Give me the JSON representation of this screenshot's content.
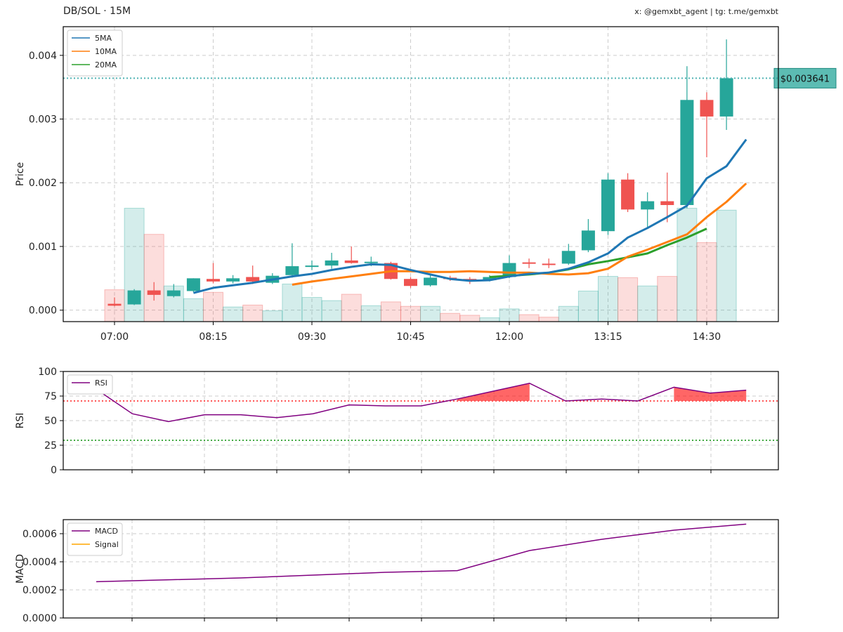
{
  "header": {
    "title": "DB/SOL · 15M",
    "credit": "x: @gemxbt_agent | tg: t.me/gemxbt"
  },
  "colors": {
    "up": "#26a69a",
    "down": "#ef5350",
    "ma5": "#1f77b4",
    "ma10": "#ff7f0e",
    "ma20": "#2ca02c",
    "rsi": "#800080",
    "macd": "#800080",
    "signal": "#ffa500",
    "price_line": "#4fb3b3"
  },
  "chart_data": [
    {
      "type": "candlestick",
      "ylabel": "Price",
      "ylim": [
        -0.00018,
        0.00445
      ],
      "yticks": [
        "0.000",
        "0.001",
        "0.002",
        "0.003",
        "0.004"
      ],
      "ytick_values": [
        0,
        0.001,
        0.002,
        0.003,
        0.004
      ],
      "xticks": [
        "07:00",
        "08:15",
        "09:30",
        "10:45",
        "12:00",
        "13:15",
        "14:30"
      ],
      "xtick_index": [
        0,
        5,
        10,
        15,
        20,
        25,
        30
      ],
      "grid": true,
      "legend": {
        "position": "top-left",
        "entries": [
          "5MA",
          "10MA",
          "20MA"
        ]
      },
      "last_price_label": "$0.003641",
      "last_price": 0.003641,
      "candles": [
        {
          "o": 0.0001,
          "h": 0.0002,
          "l": 6e-05,
          "c": 7e-05
        },
        {
          "o": 9e-05,
          "h": 0.00033,
          "l": 8e-05,
          "c": 0.00031
        },
        {
          "o": 0.00031,
          "h": 0.00044,
          "l": 0.00015,
          "c": 0.00024
        },
        {
          "o": 0.00022,
          "h": 0.00041,
          "l": 0.0002,
          "c": 0.00031
        },
        {
          "o": 0.0003,
          "h": 0.0005,
          "l": 0.00028,
          "c": 0.0005
        },
        {
          "o": 0.00049,
          "h": 0.00074,
          "l": 0.00042,
          "c": 0.00045
        },
        {
          "o": 0.00045,
          "h": 0.00055,
          "l": 0.00042,
          "c": 0.0005
        },
        {
          "o": 0.00052,
          "h": 0.0007,
          "l": 0.00041,
          "c": 0.00045
        },
        {
          "o": 0.00043,
          "h": 0.00058,
          "l": 0.00041,
          "c": 0.00054
        },
        {
          "o": 0.00055,
          "h": 0.00105,
          "l": 0.00051,
          "c": 0.00069
        },
        {
          "o": 0.00069,
          "h": 0.00078,
          "l": 0.00063,
          "c": 0.0007
        },
        {
          "o": 0.0007,
          "h": 0.0009,
          "l": 0.00065,
          "c": 0.00078
        },
        {
          "o": 0.00078,
          "h": 0.001,
          "l": 0.00073,
          "c": 0.00074
        },
        {
          "o": 0.00076,
          "h": 0.00084,
          "l": 0.00069,
          "c": 0.00076
        },
        {
          "o": 0.00074,
          "h": 0.00076,
          "l": 0.00048,
          "c": 0.00049
        },
        {
          "o": 0.00049,
          "h": 0.00052,
          "l": 0.00035,
          "c": 0.00038
        },
        {
          "o": 0.00039,
          "h": 0.00055,
          "l": 0.00037,
          "c": 0.00051
        },
        {
          "o": 0.00051,
          "h": 0.00054,
          "l": 0.00046,
          "c": 0.00049
        },
        {
          "o": 0.00049,
          "h": 0.00052,
          "l": 0.00041,
          "c": 0.00047
        },
        {
          "o": 0.00047,
          "h": 0.00055,
          "l": 0.00045,
          "c": 0.00052
        },
        {
          "o": 0.00052,
          "h": 0.00086,
          "l": 0.0005,
          "c": 0.00074
        },
        {
          "o": 0.00075,
          "h": 0.00081,
          "l": 0.00066,
          "c": 0.00073
        },
        {
          "o": 0.00073,
          "h": 0.00081,
          "l": 0.00066,
          "c": 0.00072
        },
        {
          "o": 0.00073,
          "h": 0.00104,
          "l": 0.00071,
          "c": 0.00093
        },
        {
          "o": 0.00094,
          "h": 0.00143,
          "l": 0.00091,
          "c": 0.00125
        },
        {
          "o": 0.00124,
          "h": 0.00215,
          "l": 0.00118,
          "c": 0.00205
        },
        {
          "o": 0.00205,
          "h": 0.00215,
          "l": 0.00154,
          "c": 0.00158
        },
        {
          "o": 0.00158,
          "h": 0.00185,
          "l": 0.00128,
          "c": 0.00171
        },
        {
          "o": 0.00171,
          "h": 0.00216,
          "l": 0.00138,
          "c": 0.00165
        },
        {
          "o": 0.00165,
          "h": 0.00383,
          "l": 0.0016,
          "c": 0.0033
        },
        {
          "o": 0.0033,
          "h": 0.00342,
          "l": 0.0024,
          "c": 0.00304
        },
        {
          "o": 0.00304,
          "h": 0.00425,
          "l": 0.00283,
          "c": 0.003641
        }
      ],
      "volume": [
        0.00032,
        0.0016,
        0.00119,
        0.00038,
        0.00018,
        0.00028,
        5e-05,
        8e-05,
        -1e-05,
        0.00041,
        0.0002,
        0.00015,
        0.00025,
        7e-05,
        0.00013,
        6e-05,
        6e-05,
        -5e-05,
        -8e-05,
        -0.00012,
        2e-05,
        -7e-05,
        -0.00011,
        6e-05,
        0.0003,
        0.00053,
        0.00051,
        0.00038,
        0.00053,
        0.0016,
        0.00106,
        0.00157
      ],
      "ma5": {
        "start": 4,
        "values": [
          0.00027,
          0.00035,
          0.00039,
          0.00043,
          0.00048,
          0.00053,
          0.00057,
          0.00063,
          0.00068,
          0.00072,
          0.00071,
          0.00063,
          0.00056,
          0.00049,
          0.00046,
          0.00047,
          0.00053,
          0.00057,
          0.00059,
          0.00065,
          0.00075,
          0.00089,
          0.00114,
          0.00129,
          0.00146,
          0.00164,
          0.00207,
          0.00226,
          0.00268
        ]
      },
      "ma10": {
        "start": 9,
        "values": [
          0.0004,
          0.00045,
          0.00049,
          0.00053,
          0.00057,
          0.00061,
          0.00061,
          0.0006,
          0.0006,
          0.00061,
          0.0006,
          0.00059,
          0.00059,
          0.00057,
          0.00056,
          0.00058,
          0.00065,
          0.00084,
          0.00095,
          0.00107,
          0.00119,
          0.00146,
          0.0017,
          0.00199
        ]
      },
      "ma20": {
        "start": 19,
        "values": [
          0.00052,
          0.00054,
          0.00056,
          0.00059,
          0.00064,
          0.00072,
          0.00077,
          0.00083,
          0.00089,
          0.00102,
          0.00114,
          0.00128
        ]
      }
    },
    {
      "type": "line",
      "ylabel": "RSI",
      "ylim": [
        0,
        100
      ],
      "yticks": [
        "0",
        "25",
        "50",
        "75",
        "100"
      ],
      "ytick_values": [
        0,
        25,
        50,
        75,
        100
      ],
      "overbought": 70,
      "oversold": 30,
      "grid": true,
      "legend": {
        "position": "top-left",
        "entries": [
          "RSI"
        ]
      },
      "x": [
        0,
        2,
        4,
        6,
        8,
        10,
        12,
        14,
        16,
        18,
        20,
        22,
        24,
        26,
        28,
        30,
        32,
        34,
        36
      ],
      "values": [
        82,
        57,
        49,
        56,
        56,
        53,
        57,
        66,
        65,
        65,
        72,
        80,
        88,
        70,
        72,
        70,
        84,
        78,
        81
      ],
      "first_value": 82
    },
    {
      "type": "line",
      "ylabel": "MACD",
      "ylim": [
        0,
        0.0007
      ],
      "yticks": [
        "0.0000",
        "0.0002",
        "0.0004",
        "0.0006"
      ],
      "ytick_values": [
        0,
        0.0002,
        0.0004,
        0.0006
      ],
      "grid": true,
      "legend": {
        "position": "top-left",
        "entries": [
          "MACD",
          "Signal"
        ]
      },
      "x": [
        0,
        8,
        12,
        16,
        20,
        24,
        28,
        32,
        36
      ],
      "values": [
        0.000258,
        0.000285,
        0.000305,
        0.000325,
        0.000337,
        0.00048,
        0.00056,
        0.000625,
        0.000668
      ]
    }
  ]
}
